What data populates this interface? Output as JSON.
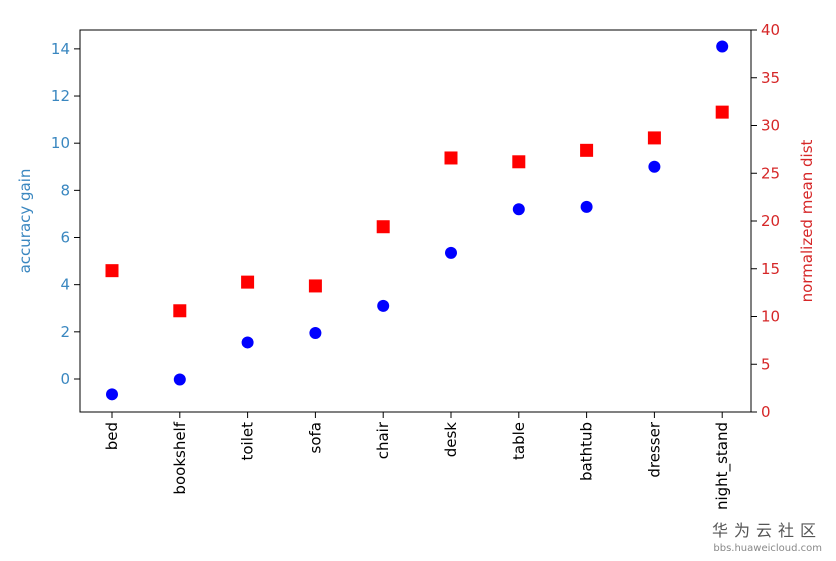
{
  "chart_data": {
    "type": "scatter",
    "categories": [
      "bed",
      "bookshelf",
      "toilet",
      "sofa",
      "chair",
      "desk",
      "table",
      "bathtub",
      "dresser",
      "night_stand"
    ],
    "series": [
      {
        "axis": "left",
        "marker": "circle",
        "color": "#0000ff",
        "values": [
          -0.65,
          -0.02,
          1.55,
          1.95,
          3.1,
          5.35,
          7.2,
          7.3,
          9.0,
          14.1
        ]
      },
      {
        "axis": "right",
        "marker": "square",
        "color": "#ff0000",
        "values": [
          14.8,
          10.6,
          13.6,
          13.2,
          19.4,
          26.6,
          26.2,
          27.4,
          28.7,
          31.4
        ]
      }
    ],
    "ylabel": "accuracy gain",
    "ylabel_color": "#3a87c0",
    "y2label": "normalized mean dist",
    "y2label_color": "#d62728",
    "ylim": [
      -1.4,
      14.8
    ],
    "y2lim": [
      0,
      40
    ],
    "yticks": [
      0,
      2,
      4,
      6,
      8,
      10,
      12,
      14
    ],
    "y2ticks": [
      0,
      5,
      10,
      15,
      20,
      25,
      30,
      35,
      40
    ],
    "xtick_rotation": "vertical",
    "grid": false,
    "legend": "none"
  },
  "watermark": {
    "title": "华为云社区",
    "url": "bbs.huaweicloud.com"
  }
}
